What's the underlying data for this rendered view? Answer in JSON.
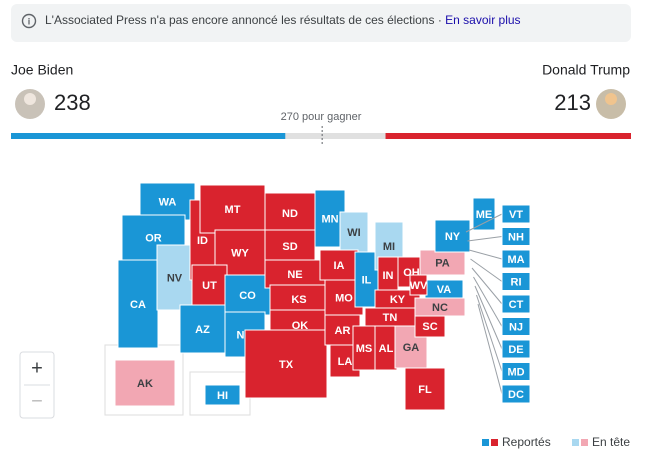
{
  "notice": {
    "text": "L'Associated Press n'a pas encore annoncé les résultats de ces élections",
    "separator": "·",
    "link": "En savoir plus"
  },
  "candidates": [
    {
      "name": "Joe Biden",
      "votes": 238,
      "color": "#1a96d6",
      "lead_color": "#a9d8f0"
    },
    {
      "name": "Donald Trump",
      "votes": 213,
      "color": "#d9232e",
      "lead_color": "#f2a7b3"
    }
  ],
  "threshold": {
    "value": 270,
    "label": "270 pour gagner"
  },
  "bar": {
    "xlim": [
      0,
      538
    ]
  },
  "states": [
    {
      "label": "WA",
      "winner": 0,
      "leading": false
    },
    {
      "label": "OR",
      "winner": 0,
      "leading": false
    },
    {
      "label": "CA",
      "winner": 0,
      "leading": false
    },
    {
      "label": "NV",
      "winner": 0,
      "leading": true
    },
    {
      "label": "ID",
      "winner": 1,
      "leading": false
    },
    {
      "label": "MT",
      "winner": 1,
      "leading": false
    },
    {
      "label": "WY",
      "winner": 1,
      "leading": false
    },
    {
      "label": "UT",
      "winner": 1,
      "leading": false
    },
    {
      "label": "CO",
      "winner": 0,
      "leading": false
    },
    {
      "label": "AZ",
      "winner": 0,
      "leading": false
    },
    {
      "label": "NM",
      "winner": 0,
      "leading": false
    },
    {
      "label": "ND",
      "winner": 1,
      "leading": false
    },
    {
      "label": "SD",
      "winner": 1,
      "leading": false
    },
    {
      "label": "NE",
      "winner": 1,
      "leading": false
    },
    {
      "label": "KS",
      "winner": 1,
      "leading": false
    },
    {
      "label": "OK",
      "winner": 1,
      "leading": false
    },
    {
      "label": "TX",
      "winner": 1,
      "leading": false
    },
    {
      "label": "MN",
      "winner": 0,
      "leading": false
    },
    {
      "label": "WI",
      "winner": 0,
      "leading": true
    },
    {
      "label": "IA",
      "winner": 1,
      "leading": false
    },
    {
      "label": "MO",
      "winner": 1,
      "leading": false
    },
    {
      "label": "AR",
      "winner": 1,
      "leading": false
    },
    {
      "label": "LA",
      "winner": 1,
      "leading": false
    },
    {
      "label": "IL",
      "winner": 0,
      "leading": false
    },
    {
      "label": "MI",
      "winner": 0,
      "leading": true
    },
    {
      "label": "IN",
      "winner": 1,
      "leading": false
    },
    {
      "label": "OH",
      "winner": 1,
      "leading": false
    },
    {
      "label": "KY",
      "winner": 1,
      "leading": false
    },
    {
      "label": "TN",
      "winner": 1,
      "leading": false
    },
    {
      "label": "MS",
      "winner": 1,
      "leading": false
    },
    {
      "label": "AL",
      "winner": 1,
      "leading": false
    },
    {
      "label": "GA",
      "winner": 1,
      "leading": true
    },
    {
      "label": "FL",
      "winner": 1,
      "leading": false
    },
    {
      "label": "SC",
      "winner": 1,
      "leading": false
    },
    {
      "label": "NC",
      "winner": 1,
      "leading": true
    },
    {
      "label": "VA",
      "winner": 0,
      "leading": false
    },
    {
      "label": "WV",
      "winner": 1,
      "leading": false
    },
    {
      "label": "PA",
      "winner": 1,
      "leading": true
    },
    {
      "label": "NY",
      "winner": 0,
      "leading": false
    },
    {
      "label": "ME",
      "winner": 0,
      "leading": false
    },
    {
      "label": "AK",
      "winner": 1,
      "leading": true
    },
    {
      "label": "HI",
      "winner": 0,
      "leading": false
    },
    {
      "label": "VT",
      "winner": 0,
      "leading": false
    },
    {
      "label": "NH",
      "winner": 0,
      "leading": false
    },
    {
      "label": "MA",
      "winner": 0,
      "leading": false
    },
    {
      "label": "RI",
      "winner": 0,
      "leading": false
    },
    {
      "label": "CT",
      "winner": 0,
      "leading": false
    },
    {
      "label": "NJ",
      "winner": 0,
      "leading": false
    },
    {
      "label": "DE",
      "winner": 0,
      "leading": false
    },
    {
      "label": "MD",
      "winner": 0,
      "leading": false
    },
    {
      "label": "DC",
      "winner": 0,
      "leading": false
    }
  ],
  "legend": {
    "reported": "Reportés",
    "leading": "En tête"
  },
  "zoom": {
    "in": "+",
    "out": "−"
  }
}
